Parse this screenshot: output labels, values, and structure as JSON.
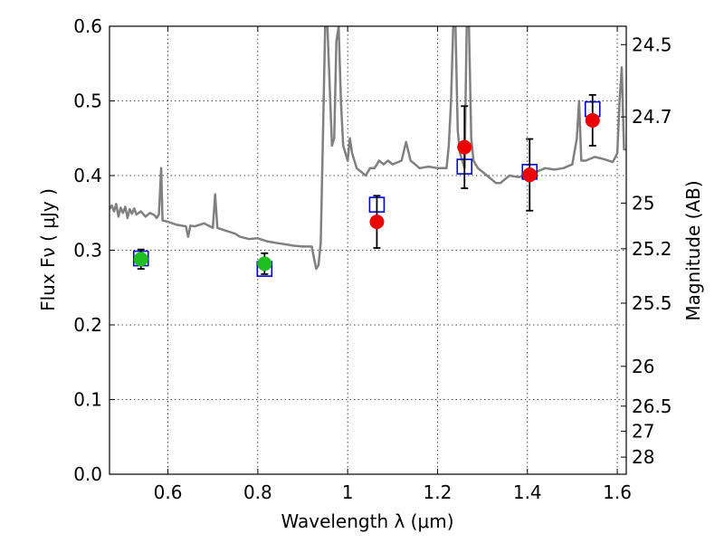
{
  "chart_data": {
    "type": "scatter",
    "xlabel": "Wavelength  λ (μm)",
    "ylabel": "Flux  Fν  ( μJy )",
    "ylabel_right": "Magnitude (AB)",
    "xlim": [
      0.47,
      1.62
    ],
    "ylim": [
      0.0,
      0.6
    ],
    "grid": true,
    "x_ticks": [
      0.6,
      0.8,
      1.0,
      1.2,
      1.4,
      1.6
    ],
    "x_tick_labels": [
      "0.6",
      "0.8",
      "1",
      "1.2",
      "1.4",
      "1.6"
    ],
    "y_ticks": [
      0.0,
      0.1,
      0.2,
      0.3,
      0.4,
      0.5,
      0.6
    ],
    "y_tick_labels": [
      "0.0",
      "0.1",
      "0.2",
      "0.3",
      "0.4",
      "0.5",
      "0.6"
    ],
    "mag_ticks": [
      {
        "flux": 0.5754,
        "label": "24.5"
      },
      {
        "flux": 0.4786,
        "label": "24.7"
      },
      {
        "flux": 0.3631,
        "label": "25"
      },
      {
        "flux": 0.302,
        "label": "25.2"
      },
      {
        "flux": 0.2291,
        "label": "25.5"
      },
      {
        "flux": 0.1445,
        "label": "26"
      },
      {
        "flux": 0.0912,
        "label": "26.5"
      },
      {
        "flux": 0.0575,
        "label": "27"
      },
      {
        "flux": 0.0229,
        "label": "28"
      }
    ],
    "colors": {
      "model": "#808080",
      "blue_box": "#0000cc",
      "green": "#1fbf1f",
      "red": "#ee0000",
      "errorbar": "#000000"
    },
    "model_spectrum": [
      [
        0.47,
        0.355
      ],
      [
        0.475,
        0.36
      ],
      [
        0.48,
        0.352
      ],
      [
        0.485,
        0.362
      ],
      [
        0.49,
        0.345
      ],
      [
        0.495,
        0.357
      ],
      [
        0.5,
        0.35
      ],
      [
        0.505,
        0.358
      ],
      [
        0.51,
        0.343
      ],
      [
        0.515,
        0.355
      ],
      [
        0.52,
        0.349
      ],
      [
        0.525,
        0.356
      ],
      [
        0.53,
        0.348
      ],
      [
        0.54,
        0.352
      ],
      [
        0.55,
        0.345
      ],
      [
        0.56,
        0.35
      ],
      [
        0.57,
        0.347
      ],
      [
        0.575,
        0.343
      ],
      [
        0.58,
        0.348
      ],
      [
        0.585,
        0.41
      ],
      [
        0.588,
        0.34
      ],
      [
        0.6,
        0.338
      ],
      [
        0.62,
        0.334
      ],
      [
        0.64,
        0.332
      ],
      [
        0.645,
        0.318
      ],
      [
        0.65,
        0.333
      ],
      [
        0.66,
        0.332
      ],
      [
        0.68,
        0.336
      ],
      [
        0.7,
        0.33
      ],
      [
        0.705,
        0.375
      ],
      [
        0.71,
        0.33
      ],
      [
        0.73,
        0.326
      ],
      [
        0.75,
        0.322
      ],
      [
        0.76,
        0.318
      ],
      [
        0.78,
        0.315
      ],
      [
        0.8,
        0.316
      ],
      [
        0.82,
        0.312
      ],
      [
        0.84,
        0.31
      ],
      [
        0.86,
        0.308
      ],
      [
        0.88,
        0.306
      ],
      [
        0.9,
        0.305
      ],
      [
        0.92,
        0.305
      ],
      [
        0.925,
        0.29
      ],
      [
        0.93,
        0.275
      ],
      [
        0.935,
        0.28
      ],
      [
        0.94,
        0.31
      ],
      [
        0.945,
        0.45
      ],
      [
        0.95,
        0.6
      ],
      [
        0.955,
        0.6
      ],
      [
        0.96,
        0.52
      ],
      [
        0.965,
        0.44
      ],
      [
        0.97,
        0.45
      ],
      [
        0.975,
        0.58
      ],
      [
        0.98,
        0.6
      ],
      [
        0.985,
        0.5
      ],
      [
        0.99,
        0.44
      ],
      [
        1.0,
        0.42
      ],
      [
        1.005,
        0.45
      ],
      [
        1.01,
        0.43
      ],
      [
        1.02,
        0.41
      ],
      [
        1.03,
        0.405
      ],
      [
        1.04,
        0.4
      ],
      [
        1.05,
        0.41
      ],
      [
        1.06,
        0.41
      ],
      [
        1.07,
        0.42
      ],
      [
        1.08,
        0.415
      ],
      [
        1.09,
        0.42
      ],
      [
        1.1,
        0.415
      ],
      [
        1.12,
        0.42
      ],
      [
        1.13,
        0.445
      ],
      [
        1.14,
        0.42
      ],
      [
        1.15,
        0.415
      ],
      [
        1.16,
        0.41
      ],
      [
        1.18,
        0.412
      ],
      [
        1.2,
        0.41
      ],
      [
        1.22,
        0.41
      ],
      [
        1.225,
        0.44
      ],
      [
        1.23,
        0.5
      ],
      [
        1.235,
        0.6
      ],
      [
        1.24,
        0.6
      ],
      [
        1.245,
        0.46
      ],
      [
        1.25,
        0.43
      ],
      [
        1.26,
        0.41
      ],
      [
        1.265,
        0.6
      ],
      [
        1.27,
        0.6
      ],
      [
        1.275,
        0.45
      ],
      [
        1.28,
        0.42
      ],
      [
        1.29,
        0.41
      ],
      [
        1.3,
        0.405
      ],
      [
        1.31,
        0.4
      ],
      [
        1.32,
        0.395
      ],
      [
        1.33,
        0.39
      ],
      [
        1.34,
        0.39
      ],
      [
        1.35,
        0.395
      ],
      [
        1.36,
        0.4
      ],
      [
        1.38,
        0.398
      ],
      [
        1.4,
        0.4
      ],
      [
        1.42,
        0.405
      ],
      [
        1.44,
        0.41
      ],
      [
        1.46,
        0.408
      ],
      [
        1.48,
        0.41
      ],
      [
        1.5,
        0.415
      ],
      [
        1.51,
        0.45
      ],
      [
        1.515,
        0.5
      ],
      [
        1.52,
        0.42
      ],
      [
        1.53,
        0.42
      ],
      [
        1.55,
        0.425
      ],
      [
        1.57,
        0.422
      ],
      [
        1.59,
        0.418
      ],
      [
        1.6,
        0.43
      ],
      [
        1.605,
        0.5
      ],
      [
        1.61,
        0.545
      ],
      [
        1.615,
        0.435
      ],
      [
        1.62,
        0.435
      ]
    ],
    "model_points": [
      {
        "x": 0.54,
        "y": 0.289
      },
      {
        "x": 0.815,
        "y": 0.275
      },
      {
        "x": 1.065,
        "y": 0.361
      },
      {
        "x": 1.26,
        "y": 0.412
      },
      {
        "x": 1.405,
        "y": 0.405
      },
      {
        "x": 1.545,
        "y": 0.489
      }
    ],
    "observed_green": [
      {
        "x": 0.54,
        "y": 0.288,
        "err": 0.013
      },
      {
        "x": 0.815,
        "y": 0.282,
        "err": 0.014
      }
    ],
    "observed_red": [
      {
        "x": 1.065,
        "y": 0.338,
        "err": 0.035
      },
      {
        "x": 1.26,
        "y": 0.438,
        "err": 0.055
      },
      {
        "x": 1.405,
        "y": 0.401,
        "err": 0.048
      },
      {
        "x": 1.545,
        "y": 0.474,
        "err": 0.034
      }
    ]
  }
}
